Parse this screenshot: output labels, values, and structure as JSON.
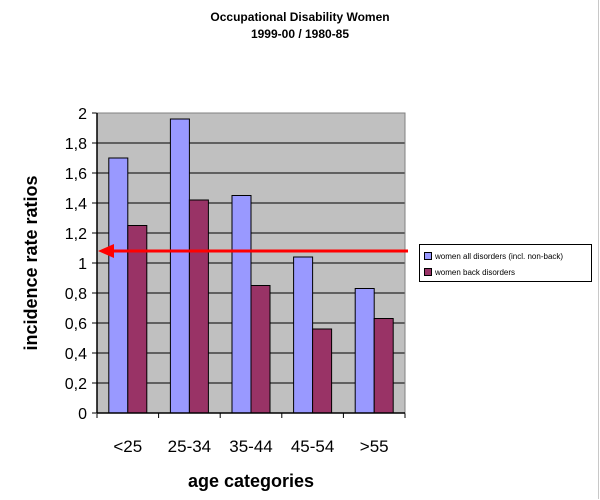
{
  "chart_data": {
    "type": "bar",
    "title": "Occupational Disability Women",
    "subtitle": "1999-00 / 1980-85",
    "xlabel": "age categories",
    "ylabel": "incidence rate ratios",
    "categories": [
      "<25",
      "25-34",
      "35-44",
      "45-54",
      ">55"
    ],
    "ylim": [
      0,
      2
    ],
    "yticks": [
      "0",
      "0,2",
      "0,4",
      "0,6",
      "0,8",
      "1",
      "1,2",
      "1,4",
      "1,6",
      "1,8",
      "2"
    ],
    "ytick_values": [
      0,
      0.2,
      0.4,
      0.6,
      0.8,
      1,
      1.2,
      1.4,
      1.6,
      1.8,
      2
    ],
    "grid": true,
    "legend_position": "right",
    "series": [
      {
        "name": "women all disorders (incl. non-back)",
        "values": [
          1.7,
          1.96,
          1.45,
          1.04,
          0.83
        ],
        "color": "#9999ff"
      },
      {
        "name": "women back disorders",
        "values": [
          1.25,
          1.42,
          0.85,
          0.56,
          0.63
        ],
        "color": "#993366"
      }
    ],
    "reference_line": {
      "value": 1.08,
      "color": "#ff0000",
      "arrow": "left"
    },
    "plot_background": "#c0c0c0"
  }
}
